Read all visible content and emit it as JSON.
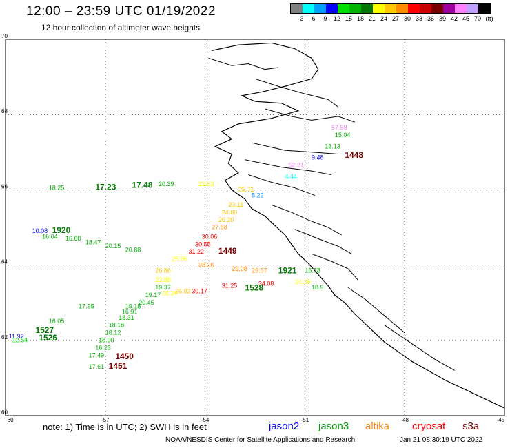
{
  "header": {
    "title": "12:00 – 23:59 UTC 01/19/2022",
    "subtitle": "12 hour collection of altimeter wave heights"
  },
  "legend": {
    "colors": [
      "#808080",
      "#00ffff",
      "#00a0ff",
      "#0000ff",
      "#00e000",
      "#00b400",
      "#007800",
      "#ffff00",
      "#ffc800",
      "#ff8c00",
      "#ff0000",
      "#c80000",
      "#780000",
      "#a000a0",
      "#ff80ff",
      "#c0a0ff",
      "#000000"
    ],
    "labels": [
      "3",
      "6",
      "9",
      "12",
      "15",
      "18",
      "21",
      "24",
      "27",
      "30",
      "33",
      "36",
      "39",
      "42",
      "45",
      "70",
      "(ft)"
    ]
  },
  "map": {
    "lat_ticks": [
      "70",
      "68",
      "66",
      "64",
      "62",
      "60"
    ],
    "lon_ticks": [
      "-60",
      "-57",
      "-54",
      "-51",
      "-48",
      "-45"
    ],
    "lat_range": [
      60,
      70
    ],
    "lon_range": [
      -60,
      -45
    ],
    "readings": [
      {
        "lon": -50.2,
        "lat": 67.6,
        "text": "57.58",
        "color": "#ff80ff",
        "big": false
      },
      {
        "lon": -50.1,
        "lat": 67.4,
        "text": "15.04",
        "color": "#00b400",
        "big": false
      },
      {
        "lon": -50.4,
        "lat": 67.1,
        "text": "18.13",
        "color": "#00b400",
        "big": false
      },
      {
        "lon": -50.8,
        "lat": 66.8,
        "text": "9.48",
        "color": "#0000ff",
        "big": false
      },
      {
        "lon": -49.8,
        "lat": 66.85,
        "text": "1448",
        "color": "#780000",
        "big": true
      },
      {
        "lon": -51.5,
        "lat": 66.6,
        "text": "52.21",
        "color": "#ff80ff",
        "big": false
      },
      {
        "lon": -51.6,
        "lat": 66.3,
        "text": "4.44",
        "color": "#00ffff",
        "big": false
      },
      {
        "lon": -58.7,
        "lat": 66.0,
        "text": "18.25",
        "color": "#00b400",
        "big": false
      },
      {
        "lon": -57.3,
        "lat": 66.0,
        "text": "17.23",
        "color": "#007800",
        "big": true
      },
      {
        "lon": -56.2,
        "lat": 66.05,
        "text": "17.48",
        "color": "#007800",
        "big": true
      },
      {
        "lon": -55.4,
        "lat": 66.1,
        "text": "20.39",
        "color": "#00b400",
        "big": false
      },
      {
        "lon": -54.2,
        "lat": 66.1,
        "text": "22.53",
        "color": "#ffff00",
        "big": false
      },
      {
        "lon": -53.0,
        "lat": 65.95,
        "text": "25.71",
        "color": "#ffc800",
        "big": false
      },
      {
        "lon": -52.6,
        "lat": 65.8,
        "text": "5.22",
        "color": "#00a0ff",
        "big": false
      },
      {
        "lon": -53.3,
        "lat": 65.55,
        "text": "23.11",
        "color": "#ffc800",
        "big": false
      },
      {
        "lon": -53.5,
        "lat": 65.35,
        "text": "24.80",
        "color": "#ffc800",
        "big": false
      },
      {
        "lon": -53.6,
        "lat": 65.15,
        "text": "26.20",
        "color": "#ffc800",
        "big": false
      },
      {
        "lon": -53.8,
        "lat": 64.95,
        "text": "27.58",
        "color": "#ff8c00",
        "big": false
      },
      {
        "lon": -54.1,
        "lat": 64.7,
        "text": "30.06",
        "color": "#ff0000",
        "big": false
      },
      {
        "lon": -54.3,
        "lat": 64.5,
        "text": "30.55",
        "color": "#ff0000",
        "big": false
      },
      {
        "lon": -54.5,
        "lat": 64.3,
        "text": "31.22",
        "color": "#ff0000",
        "big": false
      },
      {
        "lon": -53.6,
        "lat": 64.3,
        "text": "1449",
        "color": "#780000",
        "big": true
      },
      {
        "lon": -59.2,
        "lat": 64.85,
        "text": "10.08",
        "color": "#0000ff",
        "big": false
      },
      {
        "lon": -58.6,
        "lat": 64.85,
        "text": "1920",
        "color": "#007800",
        "big": true
      },
      {
        "lon": -58.9,
        "lat": 64.7,
        "text": "16.04",
        "color": "#00b400",
        "big": false
      },
      {
        "lon": -58.2,
        "lat": 64.65,
        "text": "16.88",
        "color": "#00b400",
        "big": false
      },
      {
        "lon": -57.6,
        "lat": 64.55,
        "text": "18.47",
        "color": "#00b400",
        "big": false
      },
      {
        "lon": -57.0,
        "lat": 64.45,
        "text": "20.15",
        "color": "#00b400",
        "big": false
      },
      {
        "lon": -56.4,
        "lat": 64.35,
        "text": "20.88",
        "color": "#00b400",
        "big": false
      },
      {
        "lon": -55.0,
        "lat": 64.1,
        "text": "25.06",
        "color": "#ffff00",
        "big": false
      },
      {
        "lon": -54.2,
        "lat": 63.95,
        "text": "28.26",
        "color": "#ff8c00",
        "big": false
      },
      {
        "lon": -53.2,
        "lat": 63.85,
        "text": "29.08",
        "color": "#ff8c00",
        "big": false
      },
      {
        "lon": -52.6,
        "lat": 63.8,
        "text": "29.57",
        "color": "#ff8c00",
        "big": false
      },
      {
        "lon": -51.8,
        "lat": 63.78,
        "text": "1921",
        "color": "#007800",
        "big": true
      },
      {
        "lon": -51.0,
        "lat": 63.8,
        "text": "16.78",
        "color": "#00b400",
        "big": false
      },
      {
        "lon": -55.5,
        "lat": 63.8,
        "text": "26.86",
        "color": "#ffc800",
        "big": false
      },
      {
        "lon": -55.5,
        "lat": 63.55,
        "text": "23.88",
        "color": "#ffff00",
        "big": false
      },
      {
        "lon": -55.5,
        "lat": 63.35,
        "text": "19.37",
        "color": "#00b400",
        "big": false
      },
      {
        "lon": -55.8,
        "lat": 63.15,
        "text": "19.17",
        "color": "#00b400",
        "big": false
      },
      {
        "lon": -56.0,
        "lat": 62.95,
        "text": "20.45",
        "color": "#00b400",
        "big": false
      },
      {
        "lon": -56.4,
        "lat": 62.85,
        "text": "19.18",
        "color": "#00b400",
        "big": false
      },
      {
        "lon": -56.5,
        "lat": 62.7,
        "text": "16.91",
        "color": "#00b400",
        "big": false
      },
      {
        "lon": -56.6,
        "lat": 62.55,
        "text": "18.31",
        "color": "#00b400",
        "big": false
      },
      {
        "lon": -56.9,
        "lat": 62.35,
        "text": "18.18",
        "color": "#00b400",
        "big": false
      },
      {
        "lon": -57.0,
        "lat": 62.15,
        "text": "18.12",
        "color": "#00b400",
        "big": false
      },
      {
        "lon": -57.2,
        "lat": 61.95,
        "text": "18.90",
        "color": "#00b400",
        "big": false
      },
      {
        "lon": -57.3,
        "lat": 61.75,
        "text": "16.23",
        "color": "#00b400",
        "big": false
      },
      {
        "lon": -57.5,
        "lat": 61.55,
        "text": "17.49",
        "color": "#00b400",
        "big": false
      },
      {
        "lon": -56.7,
        "lat": 61.5,
        "text": "1450",
        "color": "#780000",
        "big": true
      },
      {
        "lon": -57.5,
        "lat": 61.25,
        "text": "17.61",
        "color": "#00b400",
        "big": false
      },
      {
        "lon": -56.9,
        "lat": 61.25,
        "text": "1451",
        "color": "#780000",
        "big": true
      },
      {
        "lon": -57.8,
        "lat": 62.85,
        "text": "17.95",
        "color": "#00b400",
        "big": false
      },
      {
        "lon": -58.7,
        "lat": 62.45,
        "text": "16.05",
        "color": "#00b400",
        "big": false
      },
      {
        "lon": -59.1,
        "lat": 62.2,
        "text": "1527",
        "color": "#007800",
        "big": true
      },
      {
        "lon": -59.9,
        "lat": 62.05,
        "text": "11.92",
        "color": "#0000ff",
        "big": false
      },
      {
        "lon": -59.0,
        "lat": 62.0,
        "text": "1526",
        "color": "#007800",
        "big": true
      },
      {
        "lon": -59.8,
        "lat": 61.95,
        "text": "12.54",
        "color": "#00e000",
        "big": false
      },
      {
        "lon": -54.4,
        "lat": 63.25,
        "text": "30.17",
        "color": "#ff0000",
        "big": false
      },
      {
        "lon": -53.5,
        "lat": 63.4,
        "text": "31.25",
        "color": "#ff0000",
        "big": false
      },
      {
        "lon": -52.4,
        "lat": 63.45,
        "text": "34.08",
        "color": "#ff0000",
        "big": false
      },
      {
        "lon": -52.8,
        "lat": 63.32,
        "text": "1528",
        "color": "#007800",
        "big": true
      },
      {
        "lon": -51.3,
        "lat": 63.5,
        "text": "24.36",
        "color": "#ffff00",
        "big": false
      },
      {
        "lon": -50.8,
        "lat": 63.35,
        "text": "18.9",
        "color": "#00b400",
        "big": false
      },
      {
        "lon": -55.3,
        "lat": 63.2,
        "text": "25.34",
        "color": "#ffff00",
        "big": false
      },
      {
        "lon": -54.9,
        "lat": 63.25,
        "text": "26.82",
        "color": "#ffc800",
        "big": false
      }
    ]
  },
  "footer": {
    "note": "note:  1) Time is in UTC;  2) SWH is in feet",
    "satellites": [
      {
        "name": "jason2",
        "color": "#0000ff"
      },
      {
        "name": "jason3",
        "color": "#00a000"
      },
      {
        "name": "altika",
        "color": "#ff8c00"
      },
      {
        "name": "cryosat",
        "color": "#ff0000"
      },
      {
        "name": "s3a",
        "color": "#780000"
      }
    ],
    "credit": "NOAA/NESDIS Center for Satellite Applications and Research",
    "timestamp": "Jan 21 08:30:19 UTC 2022"
  }
}
